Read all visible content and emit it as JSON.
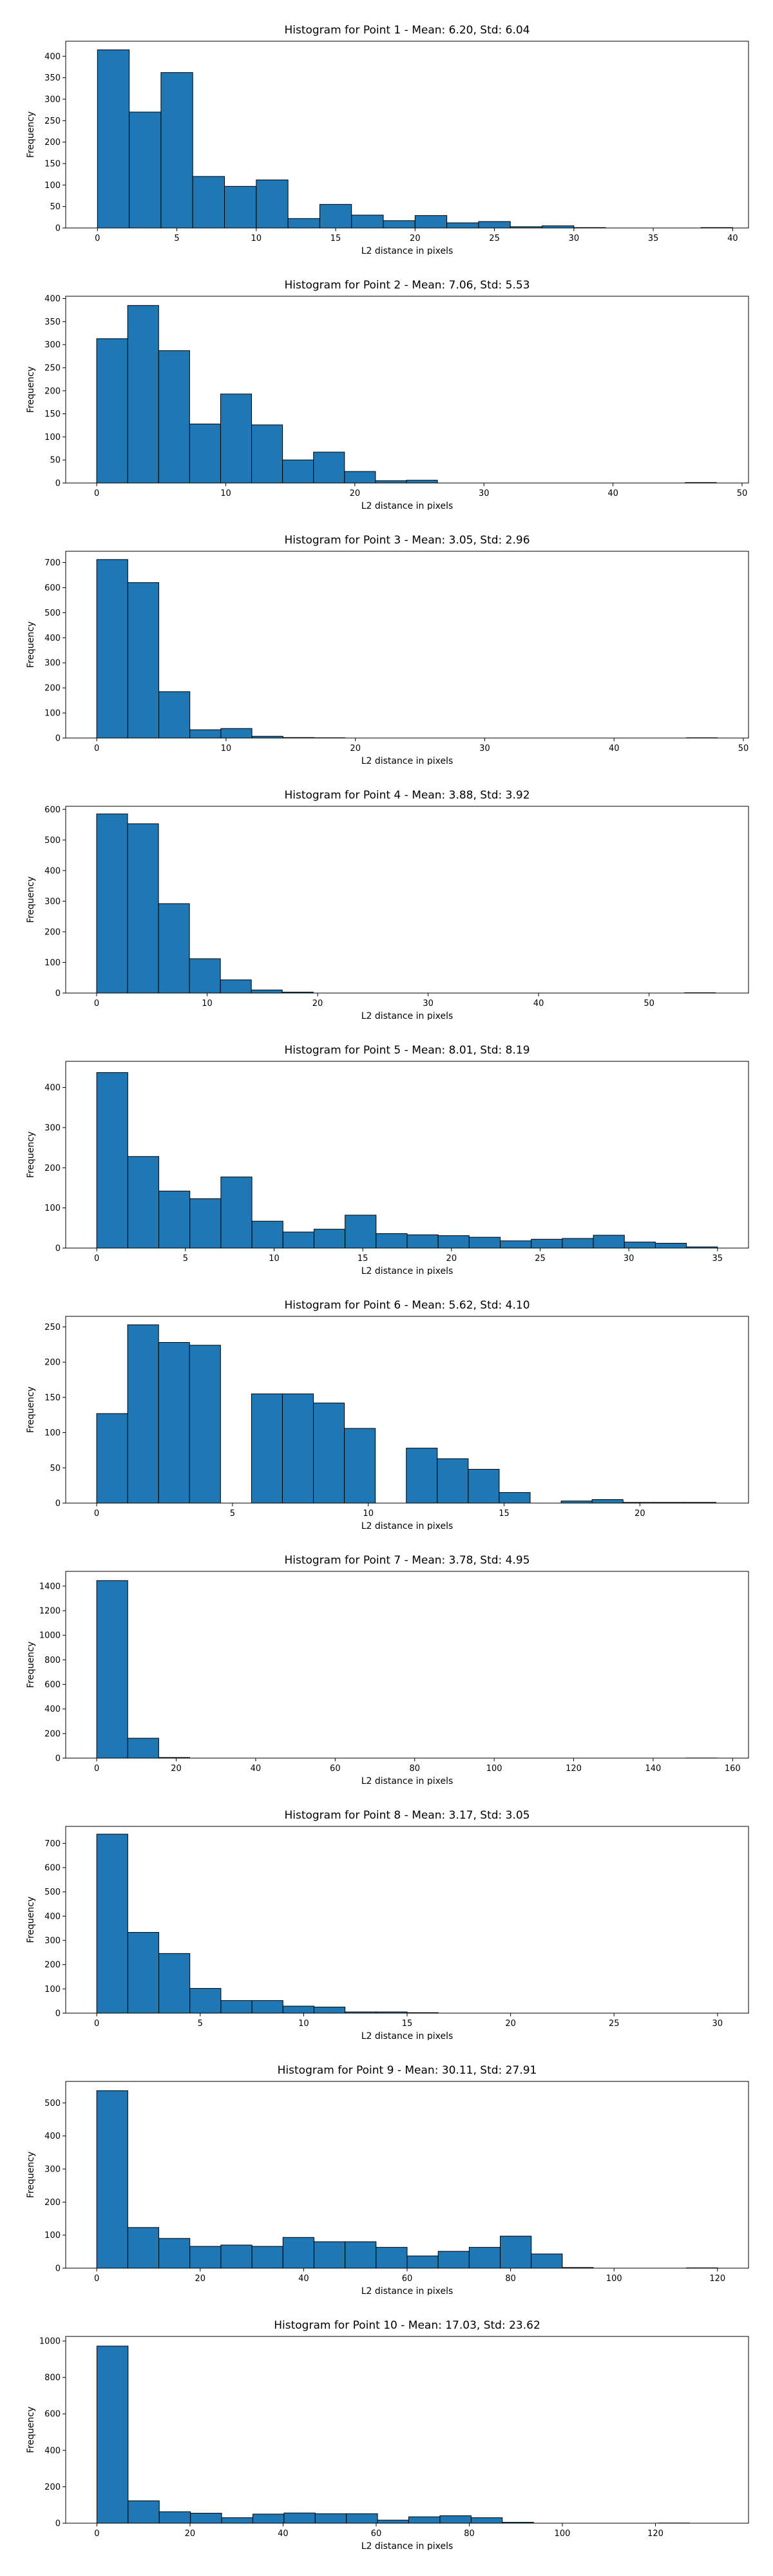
{
  "chart_data": [
    {
      "type": "bar",
      "title": "Histogram for Point 1 - Mean: 6.20, Std: 6.04",
      "xlabel": "L2 distance in pixels",
      "ylabel": "Frequency",
      "bin_start": 0,
      "bin_width": 2,
      "values": [
        415,
        270,
        362,
        120,
        97,
        112,
        22,
        55,
        30,
        17,
        29,
        12,
        15,
        3,
        5,
        1,
        0,
        0,
        0,
        1
      ],
      "xlim": [
        -2,
        41
      ],
      "ylim": [
        0,
        435
      ],
      "xticks": [
        0,
        5,
        10,
        15,
        20,
        25,
        30,
        35,
        40
      ],
      "yticks": [
        0,
        50,
        100,
        150,
        200,
        250,
        300,
        350,
        400
      ]
    },
    {
      "type": "bar",
      "title": "Histogram for Point 2 - Mean: 7.06, Std: 5.53",
      "xlabel": "L2 distance in pixels",
      "ylabel": "Frequency",
      "bin_start": 0,
      "bin_width": 2.4,
      "values": [
        313,
        385,
        287,
        128,
        193,
        126,
        50,
        67,
        25,
        5,
        6,
        0,
        0,
        0,
        0,
        0,
        0,
        0,
        0,
        1
      ],
      "xlim": [
        -2.4,
        50.5
      ],
      "ylim": [
        0,
        405
      ],
      "xticks": [
        0,
        10,
        20,
        30,
        40,
        50
      ],
      "yticks": [
        0,
        50,
        100,
        150,
        200,
        250,
        300,
        350,
        400
      ]
    },
    {
      "type": "bar",
      "title": "Histogram for Point 3 - Mean: 3.05, Std: 2.96",
      "xlabel": "L2 distance in pixels",
      "ylabel": "Frequency",
      "bin_start": 0,
      "bin_width": 2.4,
      "values": [
        712,
        620,
        185,
        33,
        38,
        7,
        2,
        1,
        0,
        0,
        0,
        0,
        0,
        0,
        0,
        0,
        0,
        0,
        0,
        1
      ],
      "xlim": [
        -2.4,
        50.4
      ],
      "ylim": [
        0,
        745
      ],
      "xticks": [
        0,
        10,
        20,
        30,
        40,
        50
      ],
      "yticks": [
        0,
        100,
        200,
        300,
        400,
        500,
        600,
        700
      ]
    },
    {
      "type": "bar",
      "title": "Histogram for Point 4 - Mean: 3.88, Std: 3.92",
      "xlabel": "L2 distance in pixels",
      "ylabel": "Frequency",
      "bin_start": 0,
      "bin_width": 2.8,
      "values": [
        585,
        553,
        292,
        112,
        43,
        10,
        3,
        0,
        0,
        0,
        0,
        0,
        0,
        0,
        0,
        0,
        0,
        0,
        0,
        1
      ],
      "xlim": [
        -2.8,
        59
      ],
      "ylim": [
        0,
        610
      ],
      "xticks": [
        0,
        10,
        20,
        30,
        40,
        50
      ],
      "yticks": [
        0,
        100,
        200,
        300,
        400,
        500,
        600
      ]
    },
    {
      "type": "bar",
      "title": "Histogram for Point 5 - Mean: 8.01, Std: 8.19",
      "xlabel": "L2 distance in pixels",
      "ylabel": "Frequency",
      "bin_start": 0,
      "bin_width": 1.75,
      "values": [
        437,
        228,
        142,
        123,
        177,
        67,
        40,
        47,
        82,
        36,
        33,
        31,
        27,
        18,
        22,
        24,
        32,
        15,
        12,
        3
      ],
      "xlim": [
        -1.75,
        36.75
      ],
      "ylim": [
        0,
        465
      ],
      "xticks": [
        0,
        5,
        10,
        15,
        20,
        25,
        30,
        35
      ],
      "yticks": [
        0,
        100,
        200,
        300,
        400
      ]
    },
    {
      "type": "bar",
      "title": "Histogram for Point 6 - Mean: 5.62, Std: 4.10",
      "xlabel": "L2 distance in pixels",
      "ylabel": "Frequency",
      "bin_start": 0,
      "bin_width": 1.14,
      "values": [
        127,
        253,
        228,
        224,
        0,
        155,
        155,
        142,
        106,
        0,
        78,
        63,
        48,
        15,
        0,
        3,
        5,
        1,
        1,
        1
      ],
      "xlim": [
        -1.14,
        24
      ],
      "ylim": [
        0,
        265
      ],
      "xticks": [
        0,
        5,
        10,
        15,
        20
      ],
      "yticks": [
        0,
        50,
        100,
        150,
        200,
        250
      ]
    },
    {
      "type": "bar",
      "title": "Histogram for Point 7 - Mean: 3.78, Std: 4.95",
      "xlabel": "L2 distance in pixels",
      "ylabel": "Frequency",
      "bin_start": 0,
      "bin_width": 7.8,
      "values": [
        1445,
        162,
        5,
        0,
        0,
        0,
        0,
        0,
        0,
        0,
        0,
        0,
        0,
        0,
        0,
        0,
        0,
        0,
        0,
        1
      ],
      "xlim": [
        -7.8,
        164
      ],
      "ylim": [
        0,
        1520
      ],
      "xticks": [
        0,
        20,
        40,
        60,
        80,
        100,
        120,
        140,
        160
      ],
      "yticks": [
        0,
        200,
        400,
        600,
        800,
        1000,
        1200,
        1400
      ]
    },
    {
      "type": "bar",
      "title": "Histogram for Point 8 - Mean: 3.17, Std: 3.05",
      "xlabel": "L2 distance in pixels",
      "ylabel": "Frequency",
      "bin_start": 0,
      "bin_width": 1.5,
      "values": [
        738,
        333,
        246,
        102,
        52,
        52,
        29,
        25,
        5,
        5,
        2,
        0,
        0,
        0,
        0,
        0,
        0,
        0,
        0,
        0
      ],
      "xlim": [
        -1.5,
        31.5
      ],
      "ylim": [
        0,
        770
      ],
      "xticks": [
        0,
        5,
        10,
        15,
        20,
        25,
        30
      ],
      "yticks": [
        0,
        100,
        200,
        300,
        400,
        500,
        600,
        700
      ]
    },
    {
      "type": "bar",
      "title": "Histogram for Point 9 - Mean: 30.11, Std: 27.91",
      "xlabel": "L2 distance in pixels",
      "ylabel": "Frequency",
      "bin_start": 0,
      "bin_width": 6,
      "values": [
        537,
        123,
        90,
        66,
        70,
        66,
        93,
        80,
        80,
        63,
        37,
        51,
        63,
        97,
        43,
        2,
        0,
        0,
        0,
        1
      ],
      "xlim": [
        -6,
        126
      ],
      "ylim": [
        0,
        565
      ],
      "xticks": [
        0,
        20,
        40,
        60,
        80,
        100,
        120
      ],
      "yticks": [
        0,
        100,
        200,
        300,
        400,
        500
      ]
    },
    {
      "type": "bar",
      "title": "Histogram for Point 10 - Mean: 17.03, Std: 23.62",
      "xlabel": "L2 distance in pixels",
      "ylabel": "Frequency",
      "bin_start": 0,
      "bin_width": 6.7,
      "values": [
        972,
        123,
        63,
        55,
        30,
        50,
        56,
        52,
        52,
        17,
        35,
        41,
        30,
        5,
        0,
        0,
        0,
        0,
        1,
        0
      ],
      "xlim": [
        -6.7,
        140
      ],
      "ylim": [
        0,
        1025
      ],
      "xticks": [
        0,
        20,
        40,
        60,
        80,
        100,
        120
      ],
      "yticks": [
        0,
        200,
        400,
        600,
        800,
        1000
      ]
    }
  ]
}
